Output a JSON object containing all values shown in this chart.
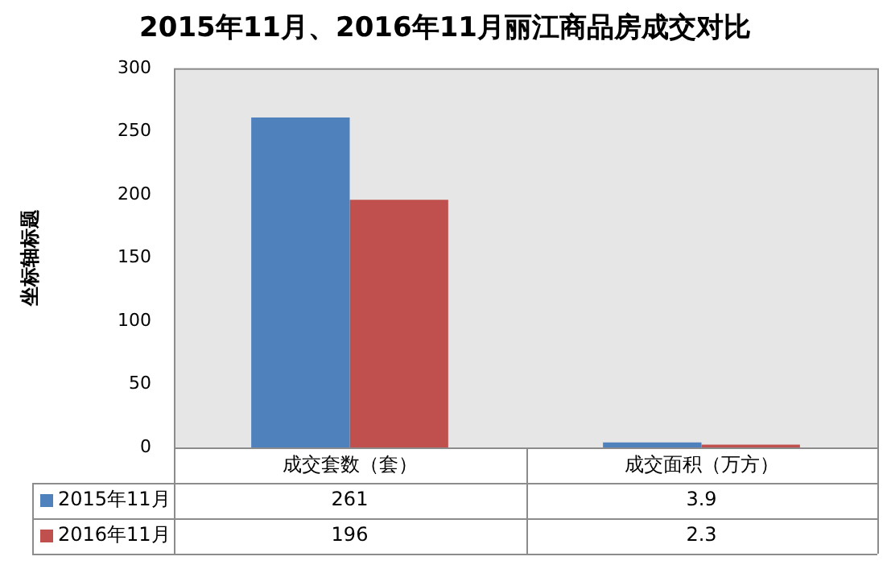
{
  "chart_data": {
    "type": "bar",
    "title": "2015年11月、2016年11月丽江商品房成交对比",
    "ylabel": "坐标轴标题",
    "categories": [
      "成交套数（套）",
      "成交面积（万方）"
    ],
    "series": [
      {
        "name": "2015年11月",
        "color": "#4f81bd",
        "values": [
          261,
          3.9
        ]
      },
      {
        "name": "2016年11月",
        "color": "#c0504d",
        "values": [
          196,
          2.3
        ]
      }
    ],
    "ylim": [
      0,
      300
    ],
    "yticks": [
      0,
      50,
      100,
      150,
      200,
      250,
      300
    ],
    "grid": false,
    "legend": "bottom",
    "data_labels": true
  }
}
